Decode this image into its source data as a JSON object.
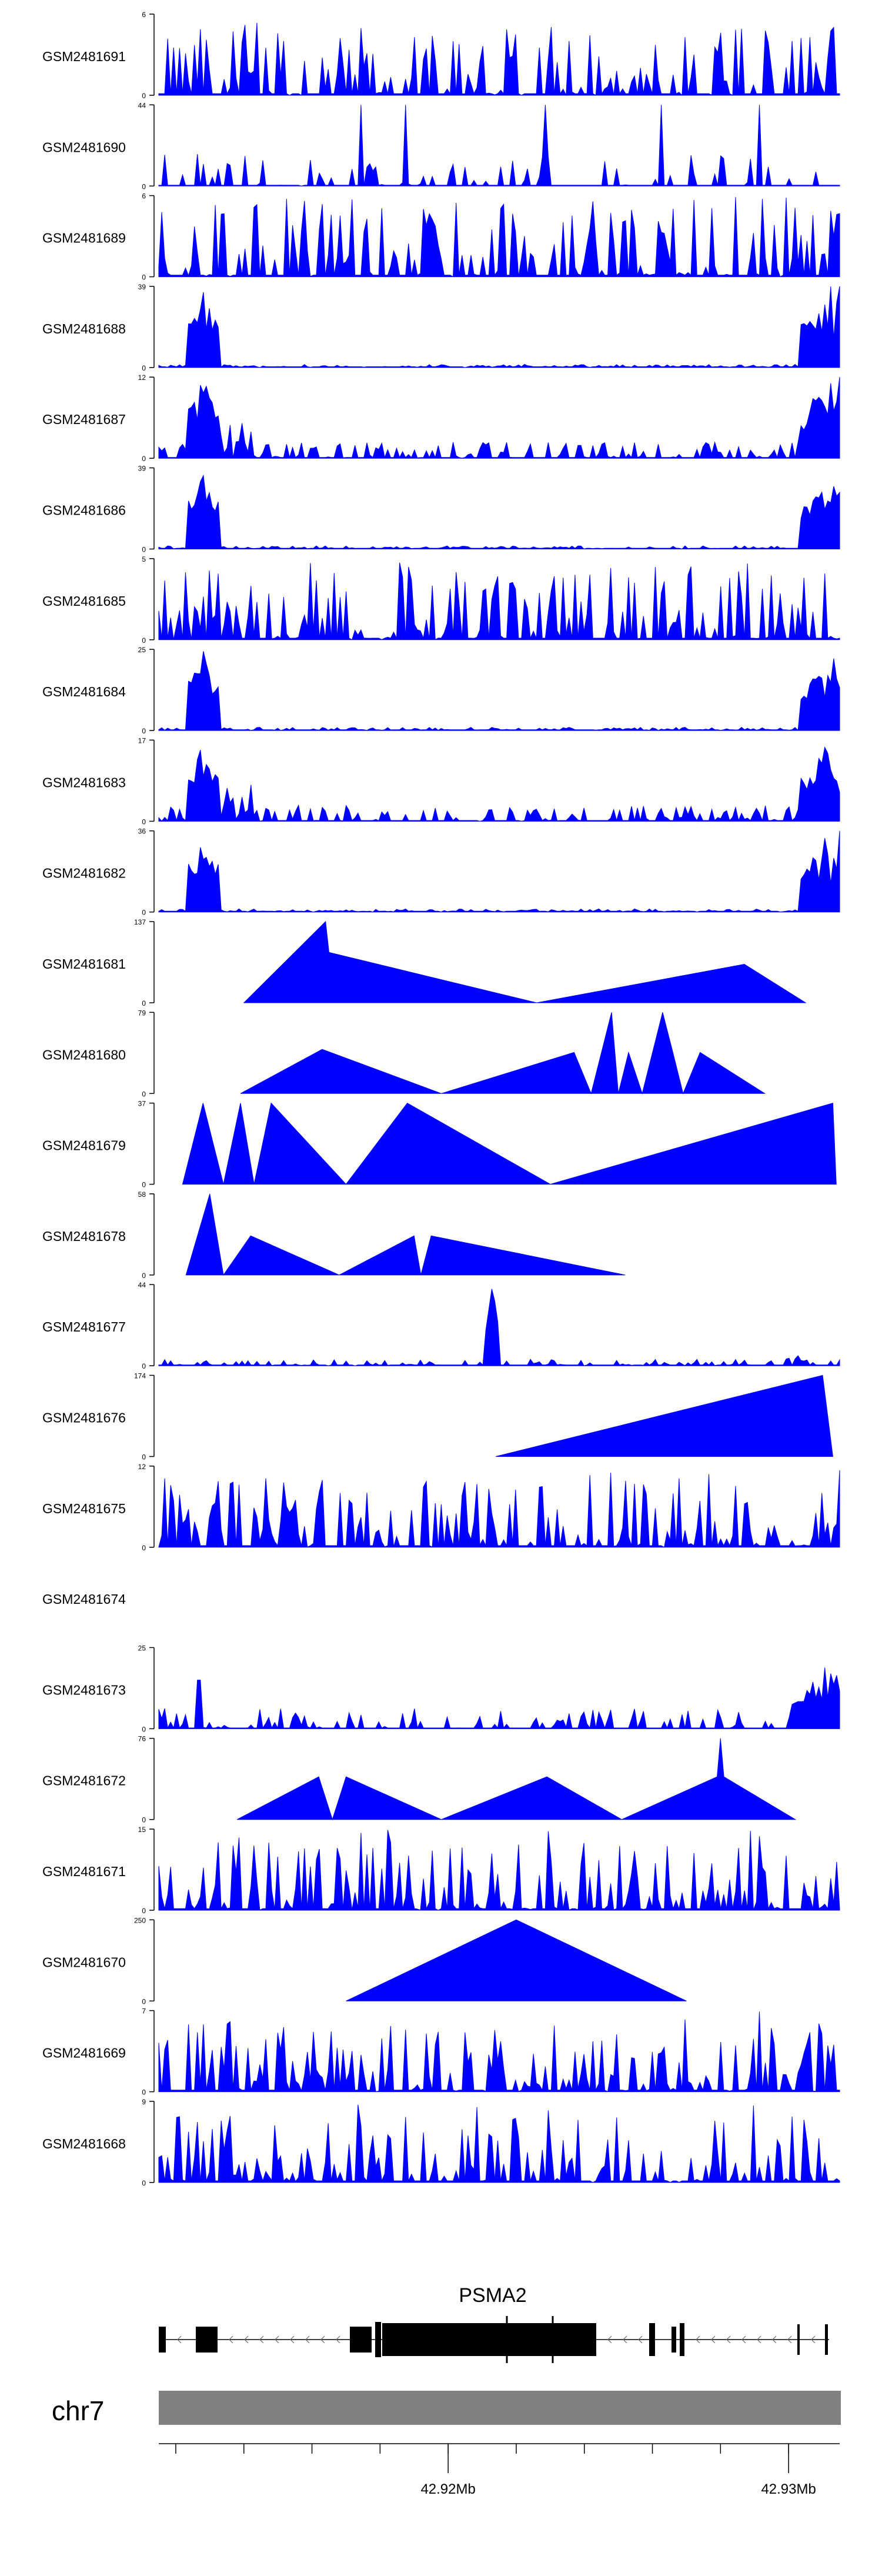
{
  "colors": {
    "signal": "#0000ff",
    "axis": "#000000",
    "chrom_bar": "#808080",
    "gene": "#000000"
  },
  "chart_data": {
    "type": "area",
    "title": "",
    "chromosome": "chr7",
    "gene_name": "PSMA2",
    "gene_strand": "-",
    "x_range_mb": [
      42.9115,
      42.9315
    ],
    "genome_axis_ticks": [
      "42.92Mb",
      "42.93Mb"
    ],
    "tracks": [
      {
        "name": "GSM2481691",
        "ymax": 6,
        "ytick_labels": [
          "0",
          "6"
        ],
        "profile": "uniform",
        "peak": null
      },
      {
        "name": "GSM2481690",
        "ymax": 44,
        "ytick_labels": [
          "0",
          "44"
        ],
        "profile": "sparse",
        "peak": null
      },
      {
        "name": "GSM2481689",
        "ymax": 6,
        "ytick_labels": [
          "0",
          "6"
        ],
        "profile": "uniform",
        "peak": null
      },
      {
        "name": "GSM2481688",
        "ymax": 39,
        "ytick_labels": [
          "0",
          "39"
        ],
        "profile": "edges",
        "peak": null
      },
      {
        "name": "GSM2481687",
        "ymax": 12,
        "ytick_labels": [
          "0",
          "12"
        ],
        "profile": "edges-mild",
        "peak": null
      },
      {
        "name": "GSM2481686",
        "ymax": 39,
        "ytick_labels": [
          "0",
          "39"
        ],
        "profile": "edges",
        "peak": null
      },
      {
        "name": "GSM2481685",
        "ymax": 5,
        "ytick_labels": [
          "0",
          "5"
        ],
        "profile": "uniform",
        "peak": null
      },
      {
        "name": "GSM2481684",
        "ymax": 25,
        "ytick_labels": [
          "0",
          "25"
        ],
        "profile": "edges",
        "peak": null
      },
      {
        "name": "GSM2481683",
        "ymax": 17,
        "ytick_labels": [
          "0",
          "17"
        ],
        "profile": "edges-mild",
        "peak": null
      },
      {
        "name": "GSM2481682",
        "ymax": 36,
        "ytick_labels": [
          "0",
          "36"
        ],
        "profile": "edges",
        "peak": null
      },
      {
        "name": "GSM2481681",
        "ymax": 137,
        "ytick_labels": [
          "0",
          "137"
        ],
        "profile": "poly",
        "points": [
          [
            42.914,
            0
          ],
          [
            42.9164,
            137
          ],
          [
            42.9165,
            85
          ],
          [
            42.9226,
            0
          ],
          [
            42.9287,
            65
          ],
          [
            42.9305,
            0
          ]
        ]
      },
      {
        "name": "GSM2481680",
        "ymax": 79,
        "ytick_labels": [
          "0",
          "79"
        ],
        "profile": "poly",
        "points": [
          [
            42.9139,
            0
          ],
          [
            42.9163,
            43
          ],
          [
            42.9198,
            0
          ],
          [
            42.9237,
            40
          ],
          [
            42.9242,
            0
          ],
          [
            42.9248,
            79
          ],
          [
            42.925,
            0
          ],
          [
            42.9253,
            40
          ],
          [
            42.9257,
            0
          ],
          [
            42.9263,
            79
          ],
          [
            42.9266,
            40
          ],
          [
            42.9269,
            0
          ],
          [
            42.9274,
            40
          ],
          [
            42.9293,
            0
          ]
        ]
      },
      {
        "name": "GSM2481679",
        "ymax": 37,
        "ytick_labels": [
          "0",
          "37"
        ],
        "profile": "poly",
        "points": [
          [
            42.9122,
            0
          ],
          [
            42.9128,
            37
          ],
          [
            42.9134,
            0
          ],
          [
            42.9139,
            37
          ],
          [
            42.9143,
            0
          ],
          [
            42.9148,
            37
          ],
          [
            42.917,
            0
          ],
          [
            42.9188,
            37
          ],
          [
            42.923,
            0
          ],
          [
            42.9313,
            37
          ],
          [
            42.9314,
            0
          ],
          [
            42.9313,
            37
          ],
          [
            42.9314,
            0
          ]
        ]
      },
      {
        "name": "GSM2481678",
        "ymax": 58,
        "ytick_labels": [
          "0",
          "58"
        ],
        "profile": "poly",
        "points": [
          [
            42.9123,
            0
          ],
          [
            42.913,
            58
          ],
          [
            42.9134,
            0
          ],
          [
            42.9142,
            28
          ],
          [
            42.9168,
            0
          ],
          [
            42.919,
            28
          ],
          [
            42.9192,
            0
          ],
          [
            42.9195,
            28
          ],
          [
            42.9252,
            0
          ]
        ]
      },
      {
        "name": "GSM2481677",
        "ymax": 44,
        "ytick_labels": [
          "0",
          "44"
        ],
        "profile": "center",
        "peak": 42.9218
      },
      {
        "name": "GSM2481676",
        "ymax": 174,
        "ytick_labels": [
          "0",
          "174"
        ],
        "profile": "poly",
        "points": [
          [
            42.9214,
            0
          ],
          [
            42.931,
            174
          ],
          [
            42.9313,
            0
          ]
        ]
      },
      {
        "name": "GSM2481675",
        "ymax": 12,
        "ytick_labels": [
          "0",
          "12"
        ],
        "profile": "uniform",
        "peak": null
      },
      {
        "name": "GSM2481674",
        "ymax": null,
        "ytick_labels": [],
        "profile": "empty",
        "peak": null
      },
      {
        "name": "GSM2481673",
        "ymax": 25,
        "ytick_labels": [
          "0",
          "25"
        ],
        "profile": "right",
        "peak": null
      },
      {
        "name": "GSM2481672",
        "ymax": 76,
        "ytick_labels": [
          "0",
          "76"
        ],
        "profile": "poly",
        "points": [
          [
            42.9138,
            0
          ],
          [
            42.9162,
            40
          ],
          [
            42.9166,
            0
          ],
          [
            42.917,
            40
          ],
          [
            42.9198,
            0
          ],
          [
            42.9229,
            40
          ],
          [
            42.9251,
            0
          ],
          [
            42.9279,
            40
          ],
          [
            42.928,
            76
          ],
          [
            42.9281,
            40
          ],
          [
            42.9302,
            0
          ]
        ]
      },
      {
        "name": "GSM2481671",
        "ymax": 15,
        "ytick_labels": [
          "0",
          "15"
        ],
        "profile": "uniform",
        "peak": null
      },
      {
        "name": "GSM2481670",
        "ymax": 250,
        "ytick_labels": [
          "0",
          "250"
        ],
        "profile": "poly",
        "points": [
          [
            42.917,
            0
          ],
          [
            42.922,
            250
          ],
          [
            42.927,
            0
          ]
        ]
      },
      {
        "name": "GSM2481669",
        "ymax": 7,
        "ytick_labels": [
          "0",
          "7"
        ],
        "profile": "uniform",
        "peak": null
      },
      {
        "name": "GSM2481668",
        "ymax": 9,
        "ytick_labels": [
          "0",
          "9"
        ],
        "profile": "uniform",
        "peak": null
      }
    ]
  }
}
